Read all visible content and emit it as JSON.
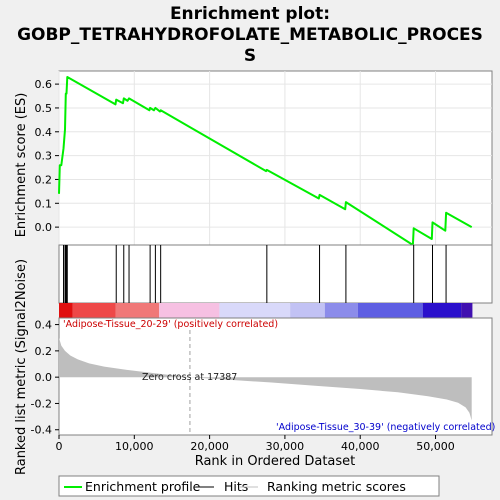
{
  "chart_data": {
    "type": "line",
    "title_line1": "Enrichment plot:",
    "title_line2": "GOBP_TETRAHYDROFOLATE_METABOLIC_PROCES",
    "title_line3": "S",
    "ylabel_top": "Enrichment score (ES)",
    "ylabel_bottom": "Ranked list metric (Signal2Noise)",
    "xlabel": "Rank in Ordered Dataset",
    "x_range": [
      0,
      57500
    ],
    "es_ylim": [
      -0.075,
      0.655
    ],
    "metric_ylim": [
      -0.44,
      0.45
    ],
    "x_ticks": [
      0,
      10000,
      20000,
      30000,
      40000,
      50000
    ],
    "x_tick_labels": [
      "0",
      "10,000",
      "20,000",
      "30,000",
      "40,000",
      "50,000"
    ],
    "es_ticks": [
      0.0,
      0.1,
      0.2,
      0.3,
      0.4,
      0.5,
      0.6
    ],
    "es_tick_labels": [
      "0.0",
      "0.1",
      "0.2",
      "0.3",
      "0.4",
      "0.5",
      "0.6"
    ],
    "metric_ticks": [
      -0.4,
      -0.2,
      0.0,
      0.2,
      0.4
    ],
    "metric_tick_labels": [
      "-0.4",
      "-0.2",
      "0.0",
      "0.2",
      "0.4"
    ],
    "enrichment_profile": {
      "x": [
        0,
        100,
        300,
        600,
        800,
        900,
        1000,
        1100,
        7500,
        7600,
        8500,
        8600,
        9100,
        9300,
        12000,
        12100,
        12600,
        12800,
        13400,
        13500,
        27500,
        27600,
        34500,
        34600,
        38000,
        38100,
        47000,
        47100,
        49500,
        49600,
        51300,
        51400,
        54800
      ],
      "y": [
        0.14,
        0.26,
        0.26,
        0.33,
        0.41,
        0.56,
        0.56,
        0.63,
        0.515,
        0.535,
        0.52,
        0.54,
        0.53,
        0.54,
        0.49,
        0.5,
        0.49,
        0.5,
        0.485,
        0.49,
        0.235,
        0.24,
        0.12,
        0.135,
        0.075,
        0.105,
        -0.075,
        -0.005,
        -0.05,
        0.02,
        -0.015,
        0.06,
        0.0
      ]
    },
    "hits": [
      600,
      800,
      900,
      1000,
      1100,
      7600,
      8600,
      9300,
      12100,
      12800,
      13500,
      27600,
      34600,
      38100,
      47100,
      49600,
      51400
    ],
    "metric_curve": {
      "x": [
        0,
        300,
        800,
        1500,
        2500,
        4000,
        6000,
        9000,
        13000,
        17387,
        22000,
        28000,
        34000,
        40000,
        45000,
        49000,
        51500,
        53000,
        54000,
        54500,
        54800
      ],
      "y": [
        0.3,
        0.24,
        0.2,
        0.165,
        0.135,
        0.105,
        0.08,
        0.055,
        0.028,
        0.0,
        -0.018,
        -0.04,
        -0.065,
        -0.09,
        -0.115,
        -0.145,
        -0.17,
        -0.195,
        -0.23,
        -0.27,
        -0.33
      ]
    },
    "zero_cross_x": 17387,
    "zero_cross_label": "Zero cross at 17387",
    "positive_label": "'Adipose-Tissue_20-29' (positively correlated)",
    "negative_label": "'Adipose-Tissue_30-39' (negatively correlated)",
    "color_bar": [
      {
        "from": 0,
        "to": 1800,
        "color": "#e01010"
      },
      {
        "from": 1800,
        "to": 7500,
        "color": "#ee4848"
      },
      {
        "from": 7500,
        "to": 13300,
        "color": "#f07878"
      },
      {
        "from": 13300,
        "to": 21300,
        "color": "#f6c0e2"
      },
      {
        "from": 21300,
        "to": 30700,
        "color": "#d9d9fa"
      },
      {
        "from": 30700,
        "to": 35300,
        "color": "#c2c2f4"
      },
      {
        "from": 35300,
        "to": 39700,
        "color": "#8c8cea"
      },
      {
        "from": 39700,
        "to": 48300,
        "color": "#5e5ee2"
      },
      {
        "from": 48300,
        "to": 53400,
        "color": "#2a10cc"
      },
      {
        "from": 53400,
        "to": 54900,
        "color": "#4010b0"
      }
    ],
    "legend": [
      {
        "label": "Enrichment profile",
        "color": "#00ee00"
      },
      {
        "label": "Hits",
        "color": "#000000"
      },
      {
        "label": "Ranking metric scores",
        "color": "#c0c0c0"
      }
    ],
    "colors": {
      "profile": "#00ee00",
      "hit": "#000000",
      "metric_fill": "#bebebe",
      "positive_text": "#cc0000",
      "negative_text": "#0000cc",
      "panel_bg": "#ffffff",
      "page_bg": "#f0f0f0"
    }
  }
}
